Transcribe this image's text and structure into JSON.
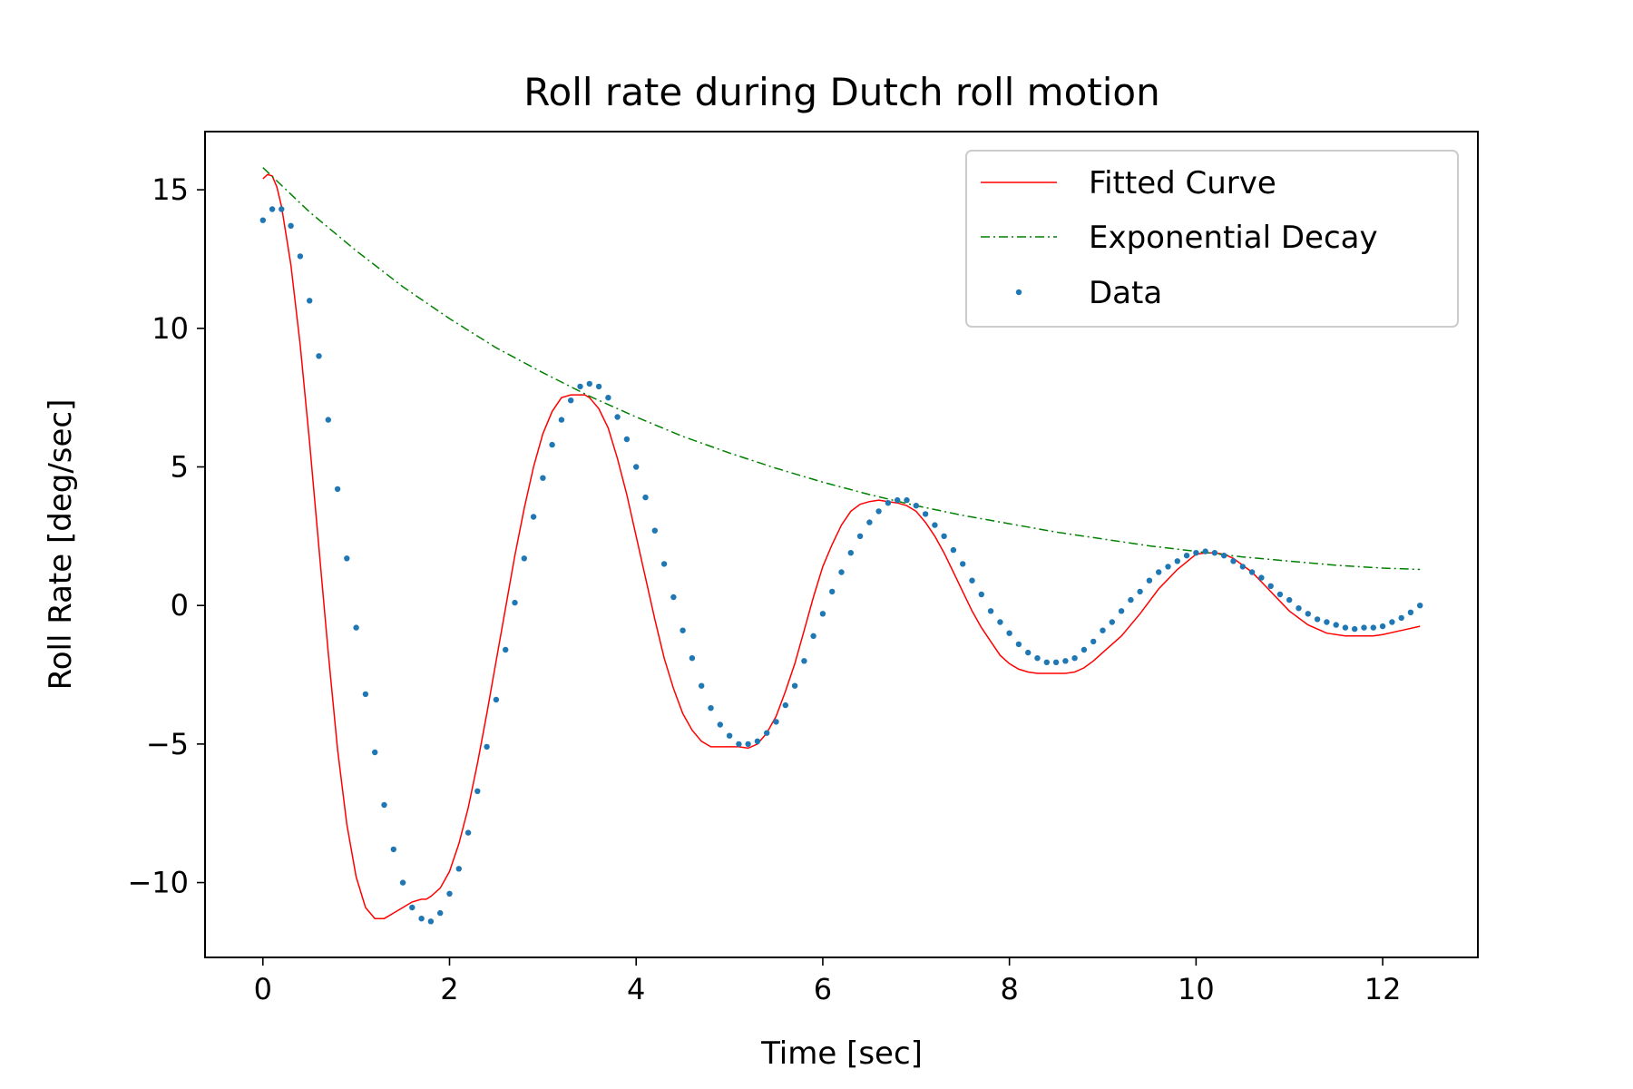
{
  "chart_data": {
    "type": "line",
    "title": "Roll rate during Dutch roll motion",
    "xlabel": "Time [sec]",
    "ylabel": "Roll Rate [deg/sec]",
    "xlim": [
      -0.62,
      13.02
    ],
    "ylim": [
      -12.7,
      17.1
    ],
    "xticks": [
      0,
      2,
      4,
      6,
      8,
      10,
      12
    ],
    "yticks": [
      -10,
      -5,
      0,
      5,
      10,
      15
    ],
    "xtick_labels": [
      "0",
      "2",
      "4",
      "6",
      "8",
      "10",
      "12"
    ],
    "ytick_labels": [
      "−10",
      "−5",
      "0",
      "5",
      "10",
      "15"
    ],
    "grid": false,
    "legend_position": "top-right",
    "series": [
      {
        "name": "Fitted Curve",
        "kind": "line",
        "color": "#ff0000",
        "style": "solid",
        "x": [
          0.0,
          0.05,
          0.1,
          0.15,
          0.2,
          0.3,
          0.4,
          0.5,
          0.6,
          0.7,
          0.8,
          0.9,
          1.0,
          1.1,
          1.2,
          1.3,
          1.4,
          1.5,
          1.6,
          1.7,
          1.75,
          1.8,
          1.9,
          2.0,
          2.1,
          2.2,
          2.3,
          2.4,
          2.5,
          2.6,
          2.7,
          2.8,
          2.9,
          3.0,
          3.1,
          3.2,
          3.3,
          3.4,
          3.45,
          3.5,
          3.6,
          3.7,
          3.8,
          3.9,
          4.0,
          4.1,
          4.2,
          4.3,
          4.4,
          4.5,
          4.6,
          4.7,
          4.8,
          4.9,
          5.0,
          5.1,
          5.2,
          5.3,
          5.4,
          5.5,
          5.6,
          5.7,
          5.8,
          5.9,
          6.0,
          6.1,
          6.2,
          6.3,
          6.4,
          6.5,
          6.6,
          6.7,
          6.8,
          6.9,
          7.0,
          7.1,
          7.2,
          7.3,
          7.4,
          7.5,
          7.6,
          7.7,
          7.8,
          7.9,
          8.0,
          8.1,
          8.2,
          8.3,
          8.4,
          8.5,
          8.55,
          8.6,
          8.7,
          8.8,
          8.9,
          9.0,
          9.2,
          9.4,
          9.6,
          9.8,
          10.0,
          10.1,
          10.2,
          10.3,
          10.4,
          10.6,
          10.8,
          11.0,
          11.2,
          11.4,
          11.6,
          11.8,
          11.9,
          12.0,
          12.2,
          12.4
        ],
        "y": [
          15.4,
          15.55,
          15.5,
          15.1,
          14.4,
          12.3,
          9.4,
          5.9,
          2.1,
          -1.7,
          -5.2,
          -7.9,
          -9.8,
          -10.9,
          -11.3,
          -11.3,
          -11.1,
          -10.9,
          -10.7,
          -10.6,
          -10.6,
          -10.5,
          -10.2,
          -9.6,
          -8.6,
          -7.3,
          -5.7,
          -3.9,
          -2.0,
          -0.1,
          1.8,
          3.5,
          5.0,
          6.2,
          7.0,
          7.5,
          7.6,
          7.6,
          7.6,
          7.5,
          7.1,
          6.4,
          5.3,
          4.0,
          2.5,
          1.0,
          -0.5,
          -1.9,
          -3.0,
          -3.9,
          -4.5,
          -4.9,
          -5.1,
          -5.1,
          -5.1,
          -5.1,
          -5.15,
          -5.0,
          -4.6,
          -4.0,
          -3.1,
          -2.1,
          -0.9,
          0.3,
          1.4,
          2.2,
          2.9,
          3.4,
          3.65,
          3.75,
          3.8,
          3.75,
          3.7,
          3.6,
          3.4,
          3.0,
          2.5,
          1.9,
          1.2,
          0.5,
          -0.2,
          -0.8,
          -1.3,
          -1.8,
          -2.1,
          -2.3,
          -2.4,
          -2.45,
          -2.45,
          -2.45,
          -2.45,
          -2.45,
          -2.4,
          -2.25,
          -2.0,
          -1.7,
          -1.1,
          -0.3,
          0.6,
          1.3,
          1.85,
          1.9,
          1.9,
          1.85,
          1.7,
          1.2,
          0.5,
          -0.2,
          -0.7,
          -1.0,
          -1.1,
          -1.1,
          -1.1,
          -1.05,
          -0.9,
          -0.75
        ]
      },
      {
        "name": "Exponential Decay",
        "kind": "line",
        "color": "#008000",
        "style": "dashdot",
        "x": [
          0,
          0.5,
          1,
          1.5,
          2,
          2.5,
          3,
          3.5,
          4,
          4.5,
          5,
          5.5,
          6,
          6.5,
          7,
          7.5,
          8,
          8.5,
          9,
          9.5,
          10,
          10.5,
          11,
          11.5,
          12,
          12.4
        ],
        "y": [
          15.8,
          14.2,
          12.8,
          11.5,
          10.35,
          9.3,
          8.4,
          7.55,
          6.8,
          6.1,
          5.5,
          4.95,
          4.45,
          4.0,
          3.6,
          3.25,
          2.95,
          2.65,
          2.4,
          2.15,
          1.95,
          1.75,
          1.6,
          1.45,
          1.35,
          1.3
        ]
      },
      {
        "name": "Data",
        "kind": "scatter",
        "color": "#1f77b4",
        "x": [
          0,
          0.1,
          0.2,
          0.3,
          0.4,
          0.5,
          0.6,
          0.7,
          0.8,
          0.9,
          1.0,
          1.1,
          1.2,
          1.3,
          1.4,
          1.5,
          1.6,
          1.7,
          1.8,
          1.9,
          2.0,
          2.1,
          2.2,
          2.3,
          2.4,
          2.5,
          2.6,
          2.7,
          2.8,
          2.9,
          3.0,
          3.1,
          3.2,
          3.3,
          3.4,
          3.5,
          3.6,
          3.7,
          3.8,
          3.9,
          4.0,
          4.1,
          4.2,
          4.3,
          4.4,
          4.5,
          4.6,
          4.7,
          4.8,
          4.9,
          5.0,
          5.1,
          5.2,
          5.3,
          5.4,
          5.5,
          5.6,
          5.7,
          5.8,
          5.9,
          6.0,
          6.1,
          6.2,
          6.3,
          6.4,
          6.5,
          6.6,
          6.7,
          6.8,
          6.9,
          7.0,
          7.1,
          7.2,
          7.3,
          7.4,
          7.5,
          7.6,
          7.7,
          7.8,
          7.9,
          8.0,
          8.1,
          8.2,
          8.3,
          8.4,
          8.5,
          8.6,
          8.7,
          8.8,
          8.9,
          9.0,
          9.1,
          9.2,
          9.3,
          9.4,
          9.5,
          9.6,
          9.7,
          9.8,
          9.9,
          10.0,
          10.1,
          10.2,
          10.3,
          10.4,
          10.5,
          10.6,
          10.7,
          10.8,
          10.9,
          11.0,
          11.1,
          11.2,
          11.3,
          11.4,
          11.5,
          11.6,
          11.7,
          11.8,
          11.9,
          12.0,
          12.1,
          12.2,
          12.3,
          12.4
        ],
        "y": [
          13.9,
          14.3,
          14.3,
          13.7,
          12.6,
          11.0,
          9.0,
          6.7,
          4.2,
          1.7,
          -0.8,
          -3.2,
          -5.3,
          -7.2,
          -8.8,
          -10.0,
          -10.9,
          -11.3,
          -11.4,
          -11.1,
          -10.4,
          -9.5,
          -8.2,
          -6.7,
          -5.1,
          -3.4,
          -1.6,
          0.1,
          1.7,
          3.2,
          4.6,
          5.8,
          6.7,
          7.4,
          7.9,
          8.0,
          7.9,
          7.5,
          6.8,
          6.0,
          5.0,
          3.9,
          2.7,
          1.5,
          0.3,
          -0.9,
          -1.9,
          -2.9,
          -3.7,
          -4.3,
          -4.7,
          -5.0,
          -5.0,
          -4.9,
          -4.6,
          -4.2,
          -3.6,
          -2.9,
          -2.0,
          -1.1,
          -0.3,
          0.5,
          1.2,
          1.9,
          2.5,
          3.0,
          3.4,
          3.7,
          3.8,
          3.8,
          3.6,
          3.3,
          2.9,
          2.5,
          2.0,
          1.5,
          0.9,
          0.4,
          -0.2,
          -0.6,
          -1.0,
          -1.4,
          -1.7,
          -1.9,
          -2.05,
          -2.05,
          -2.0,
          -1.9,
          -1.6,
          -1.3,
          -0.9,
          -0.6,
          -0.2,
          0.2,
          0.5,
          0.9,
          1.2,
          1.4,
          1.6,
          1.8,
          1.9,
          1.95,
          1.9,
          1.8,
          1.6,
          1.4,
          1.2,
          1.0,
          0.7,
          0.4,
          0.2,
          -0.1,
          -0.3,
          -0.5,
          -0.6,
          -0.7,
          -0.8,
          -0.85,
          -0.8,
          -0.8,
          -0.75,
          -0.6,
          -0.45,
          -0.25,
          0.0
        ]
      }
    ]
  }
}
